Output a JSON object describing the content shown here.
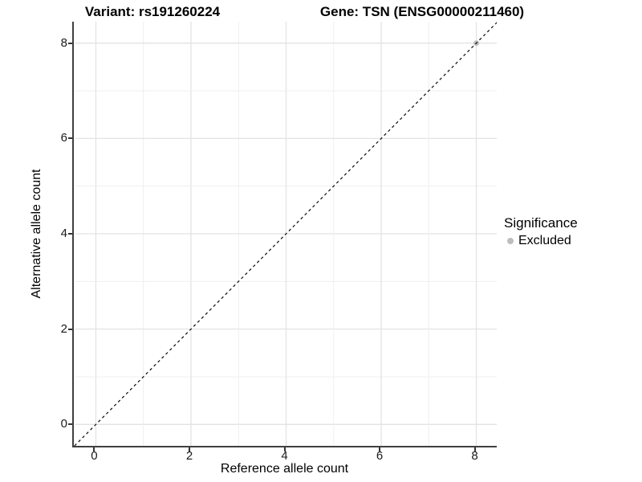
{
  "figure": {
    "title_left": "Variant: rs191260224",
    "title_right": "Gene: TSN (ENSG00000211460)"
  },
  "chart_data": {
    "type": "scatter",
    "title": "Variant: rs191260224   Gene: TSN (ENSG00000211460)",
    "xlabel": "Reference allele count",
    "ylabel": "Alternative allele count",
    "xlim": [
      -0.43,
      8.43
    ],
    "ylim": [
      -0.45,
      8.45
    ],
    "xticks": [
      0,
      2,
      4,
      6,
      8
    ],
    "yticks": [
      0,
      2,
      4,
      6,
      8
    ],
    "grid": {
      "major_every": 2,
      "minor_every": 1,
      "major_color": "#e3e3e3",
      "minor_color": "#efefef"
    },
    "reference_line": {
      "kind": "identity",
      "equation": "y = x",
      "style": "dashed",
      "color": "#0a0a0a"
    },
    "series": [
      {
        "name": "Excluded",
        "color": "#bdbdbd",
        "points": [
          {
            "x": 8,
            "y": 8
          }
        ]
      }
    ],
    "legend": {
      "title": "Significance",
      "position": "right",
      "items": [
        {
          "label": "Excluded",
          "color": "#bdbdbd"
        }
      ]
    }
  },
  "colors": {
    "background": "#ffffff",
    "axis_line": "#404040",
    "tick_mark": "#333333",
    "text": "#000000",
    "point": "#bdbdbd"
  }
}
